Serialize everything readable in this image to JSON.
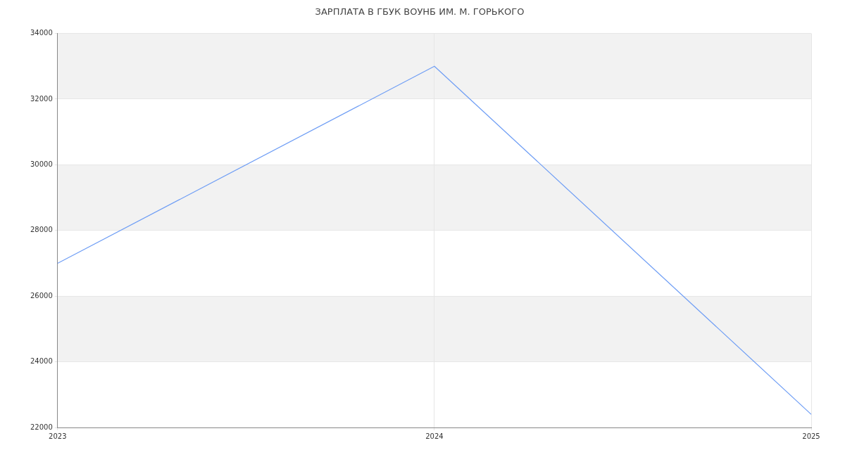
{
  "chart_data": {
    "type": "line",
    "title": "ЗАРПЛАТА В ГБУК ВОУНБ ИМ. М. ГОРЬКОГО",
    "categories": [
      "2023",
      "2024",
      "2025"
    ],
    "series": [
      {
        "color": "#6f9ef5",
        "values": [
          27000,
          33000,
          22400
        ]
      }
    ],
    "ylim": [
      22000,
      34000
    ],
    "yticks": [
      22000,
      24000,
      26000,
      28000,
      30000,
      32000,
      34000
    ],
    "bands": [
      {
        "axis": "y",
        "from": 24000,
        "to": 26000,
        "color": "#f2f2f2"
      },
      {
        "axis": "y",
        "from": 28000,
        "to": 30000,
        "color": "#f2f2f2"
      },
      {
        "axis": "y",
        "from": 32000,
        "to": 34000,
        "color": "#f2f2f2"
      }
    ],
    "grid": true,
    "legend": false,
    "marker": "none",
    "line_style": "solid"
  }
}
